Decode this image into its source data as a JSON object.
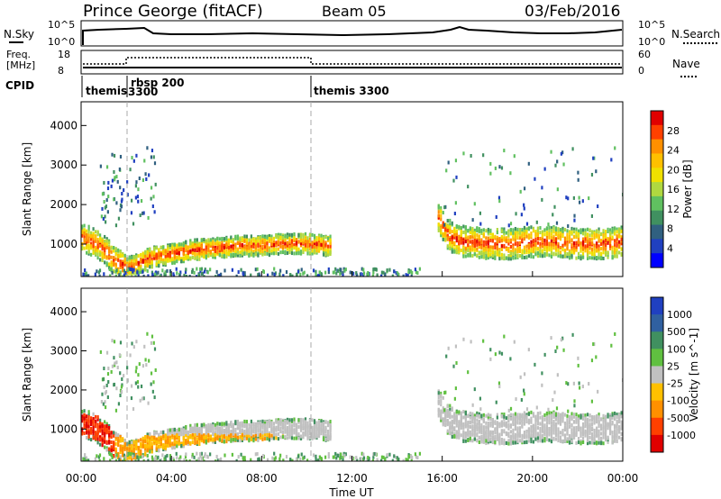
{
  "header": {
    "title": "Prince George (fitACF)",
    "beam": "Beam 05",
    "date": "03/Feb/2016"
  },
  "panels": {
    "nsky": {
      "left_label": "N.Sky",
      "left_ticks": [
        "10^5",
        "10^0"
      ],
      "right_ticks": [
        "10^5",
        "10^0"
      ],
      "right_label": "N.Search"
    },
    "freq": {
      "left_label_1": "Freq.",
      "left_label_2": "[MHz]",
      "left_ticks": [
        "18",
        "8"
      ],
      "right_ticks": [
        "60",
        "0"
      ],
      "right_label": "Nave"
    },
    "cpid": {
      "label": "CPID",
      "segments": [
        {
          "name": "themis",
          "sub": ""
        },
        {
          "name": "rbsp 200",
          "sub": "3300"
        },
        {
          "name": "themis 3300",
          "sub": ""
        }
      ],
      "boundaries_hours": [
        1.9,
        10.1
      ]
    }
  },
  "chart_data": [
    {
      "type": "heatmap",
      "quantity": "Power",
      "ylabel": "Slant Range [km]",
      "xlabel": "",
      "xlim": [
        0,
        24
      ],
      "ylim": [
        180,
        4600
      ],
      "y_ticks": [
        1000,
        2000,
        3000,
        4000
      ],
      "colorbar": {
        "label": "Power [dB]",
        "ticks": [
          "28",
          "24",
          "20",
          "16",
          "12",
          "8",
          "4"
        ],
        "colors": [
          "#e00000",
          "#ff4000",
          "#ff9000",
          "#ffc000",
          "#f0e000",
          "#b0d840",
          "#60c060",
          "#409060",
          "#306080",
          "#2040c0",
          "#0000ff"
        ]
      },
      "features": [
        {
          "name": "morning band",
          "x": [
            0.0,
            0.5,
            1.0,
            1.5,
            2.0,
            2.5,
            3.0,
            4.0,
            5.0,
            6.0,
            7.0,
            8.0,
            9.0,
            10.0,
            11.0
          ],
          "y": [
            1200,
            1100,
            900,
            600,
            450,
            550,
            700,
            800,
            900,
            950,
            1000,
            1000,
            1050,
            1050,
            1000
          ]
        },
        {
          "name": "evening band",
          "x": [
            15.8,
            16.2,
            16.6,
            17.0,
            18.0,
            19.0,
            20.0,
            21.0,
            22.0,
            23.0,
            24.0
          ],
          "y": [
            1700,
            1300,
            1150,
            1100,
            1050,
            1050,
            1100,
            1100,
            1050,
            1050,
            1100
          ]
        }
      ]
    },
    {
      "type": "heatmap",
      "quantity": "Velocity",
      "ylabel": "Slant Range [km]",
      "xlabel": "Time UT",
      "xlim": [
        0,
        24
      ],
      "ylim": [
        180,
        4600
      ],
      "x_ticks": [
        "00:00",
        "04:00",
        "08:00",
        "12:00",
        "16:00",
        "20:00",
        "00:00"
      ],
      "y_ticks": [
        1000,
        2000,
        3000,
        4000
      ],
      "colorbar": {
        "label": "Velocity [m s^-1]",
        "ticks": [
          "1000",
          "500",
          "100",
          "25",
          "-25",
          "-100",
          "-500",
          "-1000"
        ],
        "colors": [
          "#2040c0",
          "#3060a0",
          "#409060",
          "#60c040",
          "#c0c0c0",
          "#ffc000",
          "#ff9000",
          "#ff4000",
          "#e00000"
        ]
      }
    }
  ]
}
